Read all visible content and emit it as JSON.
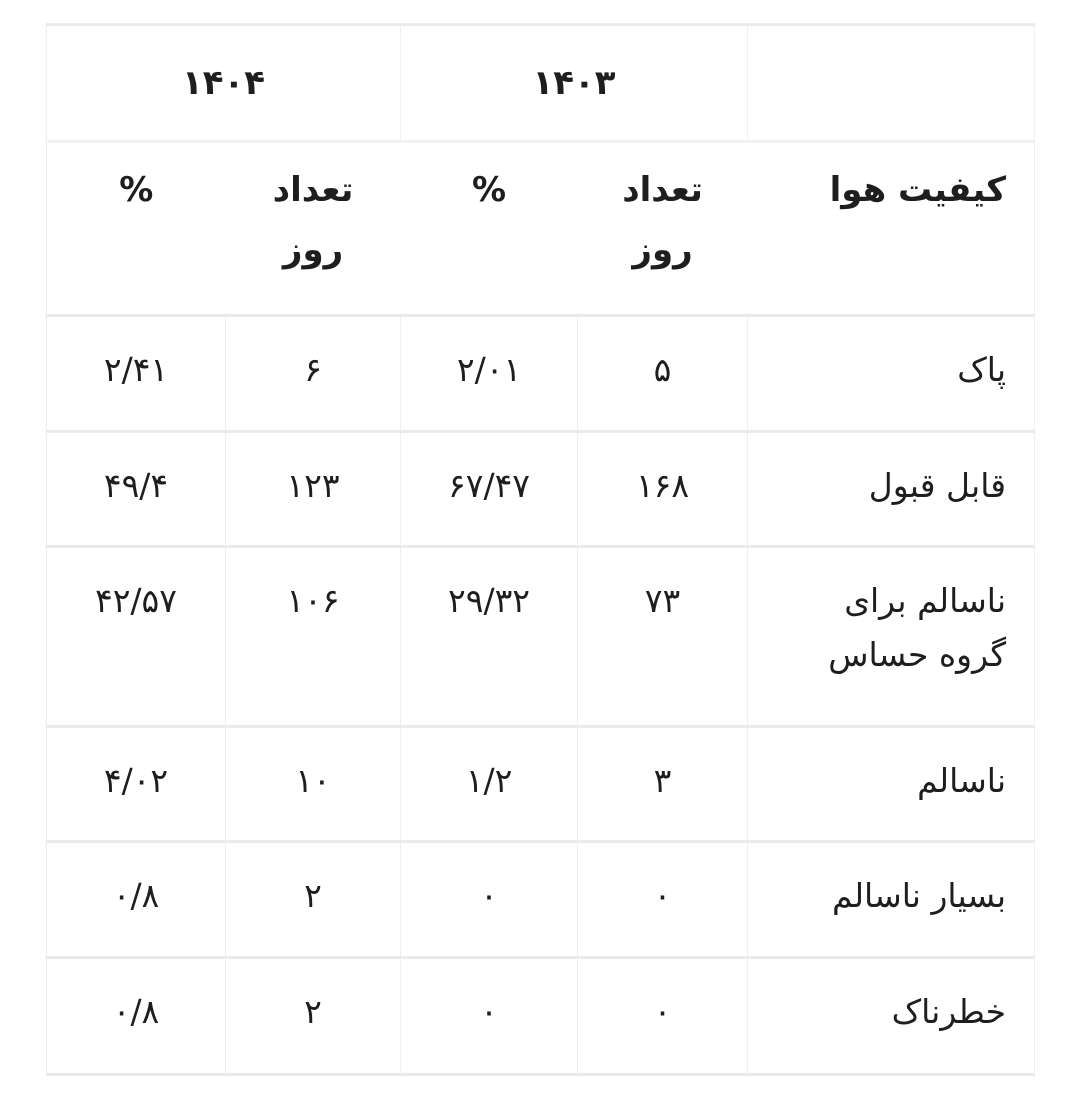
{
  "colors": {
    "background": "#ffffff",
    "text": "#1e1e1e",
    "horizontal_border": "#e8eaeb",
    "vertical_border": "#f1efe7"
  },
  "table": {
    "years": {
      "y1404": "۱۴۰۴",
      "y1403": "۱۴۰۳"
    },
    "headers": {
      "quality": "کیفیت هوا",
      "days": "تعداد روز",
      "percent": "%"
    },
    "rows": [
      {
        "quality": "پاک",
        "d1403": "۵",
        "p1403": "۲/۰۱",
        "d1404": "۶",
        "p1404": "۲/۴۱"
      },
      {
        "quality": "قابل قبول",
        "d1403": "۱۶۸",
        "p1403": "۶۷/۴۷",
        "d1404": "۱۲۳",
        "p1404": "۴۹/۴"
      },
      {
        "quality": "ناسالم برای گروه حساس",
        "d1403": "۷۳",
        "p1403": "۲۹/۳۲",
        "d1404": "۱۰۶",
        "p1404": "۴۲/۵۷"
      },
      {
        "quality": "ناسالم",
        "d1403": "۳",
        "p1403": "۱/۲",
        "d1404": "۱۰",
        "p1404": "۴/۰۲"
      },
      {
        "quality": "بسیار ناسالم",
        "d1403": "۰",
        "p1403": "۰",
        "d1404": "۲",
        "p1404": "۰/۸"
      },
      {
        "quality": "خطرناک",
        "d1403": "۰",
        "p1403": "۰",
        "d1404": "۲",
        "p1404": "۰/۸"
      }
    ]
  },
  "chart_data": {
    "type": "table",
    "row_header": "کیفیت هوا",
    "column_groups": [
      {
        "group_label": "۱۴۰۳",
        "columns": [
          "تعداد روز",
          "%"
        ]
      },
      {
        "group_label": "۱۴۰۴",
        "columns": [
          "تعداد روز",
          "%"
        ]
      }
    ],
    "rows": [
      {
        "category": "پاک",
        "y1403_days": 5,
        "y1403_percent": 2.01,
        "y1404_days": 6,
        "y1404_percent": 2.41
      },
      {
        "category": "قابل قبول",
        "y1403_days": 168,
        "y1403_percent": 67.47,
        "y1404_days": 123,
        "y1404_percent": 49.4
      },
      {
        "category": "ناسالم برای گروه حساس",
        "y1403_days": 73,
        "y1403_percent": 29.32,
        "y1404_days": 106,
        "y1404_percent": 42.57
      },
      {
        "category": "ناسالم",
        "y1403_days": 3,
        "y1403_percent": 1.2,
        "y1404_days": 10,
        "y1404_percent": 4.02
      },
      {
        "category": "بسیار ناسالم",
        "y1403_days": 0,
        "y1403_percent": 0,
        "y1404_days": 2,
        "y1404_percent": 0.8
      },
      {
        "category": "خطرناک",
        "y1403_days": 0,
        "y1403_percent": 0,
        "y1404_days": 2,
        "y1404_percent": 0.8
      }
    ]
  }
}
